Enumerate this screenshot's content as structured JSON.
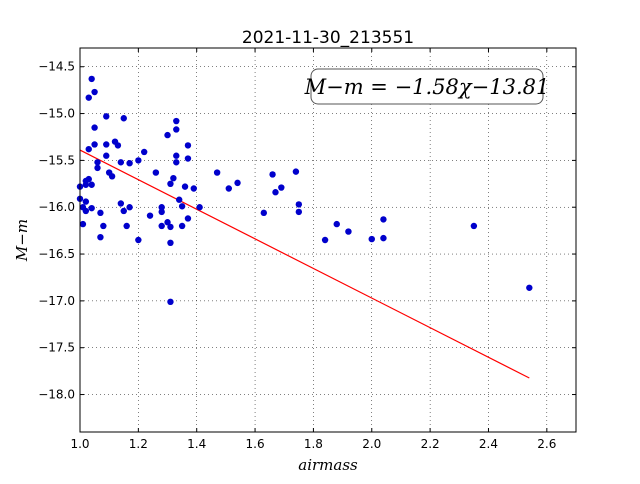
{
  "chart_data": {
    "type": "scatter",
    "title": "2021-11-30_213551",
    "xlabel": "airmass",
    "ylabel": "M−m",
    "xlim": [
      1.0,
      2.7
    ],
    "ylim": [
      -18.4,
      -14.3
    ],
    "x_ticks": [
      "1.0",
      "1.2",
      "1.4",
      "1.6",
      "1.8",
      "2.0",
      "2.2",
      "2.4",
      "2.6"
    ],
    "x_tick_values": [
      1.0,
      1.2,
      1.4,
      1.6,
      1.8,
      2.0,
      2.2,
      2.4,
      2.6
    ],
    "y_ticks": [
      "−14.5",
      "−15.0",
      "−15.5",
      "−16.0",
      "−16.5",
      "−17.0",
      "−17.5",
      "−18.0"
    ],
    "y_tick_values": [
      -14.5,
      -15.0,
      -15.5,
      -16.0,
      -16.5,
      -17.0,
      -17.5,
      -18.0
    ],
    "grid": true,
    "annotation": "M−m = −1.58χ−13.81",
    "fit": {
      "slope": -1.58,
      "intercept": -13.81,
      "x_range": [
        1.0,
        2.54
      ],
      "color": "#ff0000"
    },
    "series": [
      {
        "color": "#0000cc",
        "points": [
          [
            1.04,
            -14.63
          ],
          [
            1.05,
            -14.77
          ],
          [
            1.03,
            -14.83
          ],
          [
            1.09,
            -15.03
          ],
          [
            1.15,
            -15.05
          ],
          [
            1.33,
            -15.08
          ],
          [
            1.33,
            -15.17
          ],
          [
            1.05,
            -15.15
          ],
          [
            1.3,
            -15.23
          ],
          [
            1.12,
            -15.3
          ],
          [
            1.13,
            -15.34
          ],
          [
            1.09,
            -15.33
          ],
          [
            1.05,
            -15.33
          ],
          [
            1.03,
            -15.38
          ],
          [
            1.37,
            -15.34
          ],
          [
            1.22,
            -15.41
          ],
          [
            1.09,
            -15.45
          ],
          [
            1.33,
            -15.45
          ],
          [
            1.37,
            -15.48
          ],
          [
            1.33,
            -15.52
          ],
          [
            1.2,
            -15.5
          ],
          [
            1.17,
            -15.53
          ],
          [
            1.06,
            -15.52
          ],
          [
            1.14,
            -15.52
          ],
          [
            1.06,
            -15.58
          ],
          [
            1.1,
            -15.63
          ],
          [
            1.11,
            -15.67
          ],
          [
            1.03,
            -15.7
          ],
          [
            1.02,
            -15.72
          ],
          [
            1.02,
            -15.76
          ],
          [
            1.04,
            -15.76
          ],
          [
            1.0,
            -15.78
          ],
          [
            1.26,
            -15.63
          ],
          [
            1.32,
            -15.69
          ],
          [
            1.31,
            -15.75
          ],
          [
            1.36,
            -15.78
          ],
          [
            1.39,
            -15.8
          ],
          [
            1.47,
            -15.63
          ],
          [
            1.51,
            -15.8
          ],
          [
            1.54,
            -15.74
          ],
          [
            1.66,
            -15.65
          ],
          [
            1.69,
            -15.79
          ],
          [
            1.67,
            -15.84
          ],
          [
            1.74,
            -15.62
          ],
          [
            1.34,
            -15.92
          ],
          [
            1.35,
            -15.99
          ],
          [
            1.0,
            -15.91
          ],
          [
            1.02,
            -15.94
          ],
          [
            1.14,
            -15.96
          ],
          [
            1.17,
            -16.0
          ],
          [
            1.01,
            -16.0
          ],
          [
            1.04,
            -16.01
          ],
          [
            1.02,
            -16.04
          ],
          [
            1.07,
            -16.06
          ],
          [
            1.15,
            -16.04
          ],
          [
            1.28,
            -16.0
          ],
          [
            1.28,
            -16.05
          ],
          [
            1.41,
            -16.0
          ],
          [
            1.37,
            -16.12
          ],
          [
            1.24,
            -16.09
          ],
          [
            1.3,
            -16.16
          ],
          [
            1.28,
            -16.2
          ],
          [
            1.31,
            -16.21
          ],
          [
            1.35,
            -16.2
          ],
          [
            1.16,
            -16.2
          ],
          [
            1.01,
            -16.18
          ],
          [
            1.08,
            -16.2
          ],
          [
            1.75,
            -15.97
          ],
          [
            1.75,
            -16.05
          ],
          [
            1.63,
            -16.06
          ],
          [
            1.07,
            -16.32
          ],
          [
            1.2,
            -16.35
          ],
          [
            1.31,
            -16.38
          ],
          [
            1.88,
            -16.18
          ],
          [
            1.92,
            -16.26
          ],
          [
            1.84,
            -16.35
          ],
          [
            2.04,
            -16.13
          ],
          [
            2.0,
            -16.34
          ],
          [
            2.04,
            -16.33
          ],
          [
            2.35,
            -16.2
          ],
          [
            1.31,
            -17.01
          ],
          [
            2.54,
            -16.86
          ]
        ]
      }
    ]
  }
}
